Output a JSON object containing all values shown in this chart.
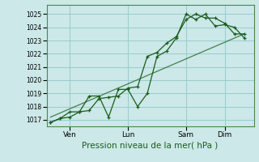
{
  "title": "",
  "xlabel": "Pression niveau de la mer( hPa )",
  "ylabel": "",
  "background_color": "#cce8e8",
  "grid_color": "#99cccc",
  "line_color": "#1a5c1a",
  "ylim": [
    1016.5,
    1025.7
  ],
  "yticks": [
    1017,
    1018,
    1019,
    1020,
    1021,
    1022,
    1023,
    1024,
    1025
  ],
  "day_labels": [
    "Ven",
    "Lun",
    "Sam",
    "Dim"
  ],
  "day_positions": [
    1,
    4,
    7,
    9
  ],
  "xlim": [
    -0.2,
    10.5
  ],
  "series1_x": [
    0,
    0.5,
    1.0,
    1.5,
    2.0,
    2.5,
    3.0,
    3.5,
    4.0,
    4.5,
    5.0,
    5.5,
    6.0,
    6.5,
    7.0,
    7.5,
    8.0,
    8.5,
    9.0,
    9.5,
    10.0
  ],
  "series1_y": [
    1016.8,
    1017.1,
    1017.2,
    1017.6,
    1017.7,
    1018.6,
    1018.7,
    1018.8,
    1019.4,
    1019.5,
    1021.8,
    1022.1,
    1022.8,
    1023.3,
    1024.6,
    1025.0,
    1024.7,
    1024.7,
    1024.3,
    1023.5,
    1023.5
  ],
  "series2_x": [
    0,
    0.5,
    1.0,
    1.5,
    2.0,
    2.5,
    3.0,
    3.5,
    4.0,
    4.5,
    5.0,
    5.5,
    6.0,
    6.5,
    7.0,
    7.5,
    8.0,
    8.5,
    9.0,
    9.5,
    10.0
  ],
  "series2_y": [
    1016.8,
    1017.1,
    1017.6,
    1017.6,
    1018.8,
    1018.8,
    1017.2,
    1019.3,
    1019.3,
    1018.0,
    1019.0,
    1021.8,
    1022.2,
    1023.2,
    1025.0,
    1024.6,
    1025.0,
    1024.1,
    1024.2,
    1024.0,
    1023.2
  ],
  "trend_x": [
    0,
    10.0
  ],
  "trend_y": [
    1017.2,
    1023.5
  ],
  "ytick_fontsize": 5.5,
  "xtick_fontsize": 6.5,
  "xlabel_fontsize": 7.5
}
